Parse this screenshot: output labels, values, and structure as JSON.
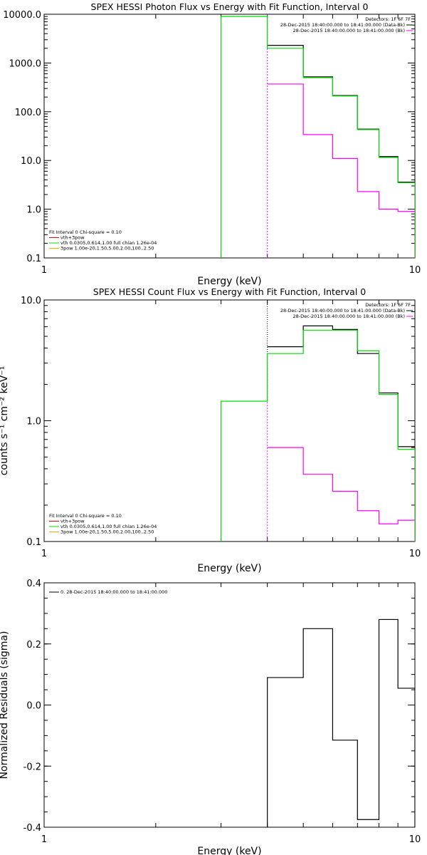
{
  "chart_data": [
    {
      "type": "line",
      "title": "SPEX HESSI Photon Flux vs Energy with Fit Function, Interval 0",
      "xlabel": "Energy (keV)",
      "ylabel": "",
      "xscale": "log",
      "yscale": "log",
      "xlim": [
        1,
        10
      ],
      "ylim": [
        0.1,
        10000
      ],
      "xticks": [
        {
          "v": 1,
          "label": "1"
        },
        {
          "v": 10,
          "label": "10"
        }
      ],
      "yticks": [
        {
          "v": 10000,
          "label": "10000.0"
        },
        {
          "v": 1000,
          "label": "1000.0"
        },
        {
          "v": 100,
          "label": "100.0"
        },
        {
          "v": 10,
          "label": "10.0"
        },
        {
          "v": 1,
          "label": "1.0"
        },
        {
          "v": 0.1,
          "label": "0.1"
        }
      ],
      "legend_position": "bottom-left",
      "legend": [
        {
          "text": "Fit Interval  0    Chi-square = 0.10",
          "color": ""
        },
        {
          "text": "vth+3pow",
          "color": "#ff0000"
        },
        {
          "text": "vth 0.0305,0.614,1.00   full chian 1.26e-04",
          "color": "#00dd00"
        },
        {
          "text": "3pow 1.00e-20,1.50,5.00,2.00,100.,2.50",
          "color": "#ffaa00"
        }
      ],
      "info_position": "top-right",
      "info": [
        {
          "text": "Detectors: 1F 6F 7F",
          "color": ""
        },
        {
          "text": "28-Dec-2015 18:40:00.000 to 18:41:00.000 (Data-Bk)",
          "color": "#000000"
        },
        {
          "text": "28-Dec-2015 18:40:00.000 to 18:41:00.000 (Bk)",
          "color": "#ff00ff"
        }
      ],
      "vline": {
        "x": 4.0,
        "color": "#ff00ff",
        "style": "dashed"
      },
      "series": [
        {
          "name": "28-Dec-2015 18:40:00.000 to 18:41:00.000 (Data-Bk)",
          "color": "#000000",
          "edges": [
            4.0,
            5.0,
            6.0,
            7.0,
            8.0,
            9.0,
            10.0
          ],
          "values": [
            2300,
            520,
            215,
            44,
            12,
            3.6
          ]
        },
        {
          "name": "28-Dec-2015 18:40:00.000 to 18:41:00.000 (Bk)",
          "color": "#ff00ff",
          "edges": [
            4.0,
            5.0,
            6.0,
            7.0,
            8.0,
            9.0,
            10.0
          ],
          "values": [
            370,
            34,
            11,
            2.3,
            1.0,
            0.9
          ]
        },
        {
          "name": "vth+3pow",
          "color": "#00dd00",
          "edges": [
            3.0,
            4.0,
            5.0,
            6.0,
            7.0,
            8.0,
            9.0,
            10.0
          ],
          "values": [
            9000,
            2000,
            500,
            210,
            43,
            11.5,
            3.5
          ],
          "floor": 0.1
        }
      ]
    },
    {
      "type": "line",
      "title": "SPEX HESSI Count Flux vs Energy with Fit Function, Interval 0",
      "xlabel": "Energy (keV)",
      "ylabel": "counts s⁻¹ cm⁻² keV⁻¹",
      "xscale": "log",
      "yscale": "log",
      "xlim": [
        1,
        10
      ],
      "ylim": [
        0.1,
        10
      ],
      "xticks": [
        {
          "v": 1,
          "label": "1"
        },
        {
          "v": 10,
          "label": "10"
        }
      ],
      "yticks": [
        {
          "v": 10,
          "label": "10.0"
        },
        {
          "v": 1,
          "label": "1.0"
        },
        {
          "v": 0.1,
          "label": "0.1"
        }
      ],
      "legend_position": "bottom-left",
      "legend": [
        {
          "text": "Fit Interval  0    Chi-square = 0.10",
          "color": ""
        },
        {
          "text": "vth+3pow",
          "color": "#ff0000"
        },
        {
          "text": "vth 0.0305,0.614,1.00   full chian 1.26e-04",
          "color": "#00dd00"
        },
        {
          "text": "3pow 1.00e-20,1.50,5.00,2.00,100.,2.50",
          "color": "#ffaa00"
        }
      ],
      "info_position": "top-right",
      "info": [
        {
          "text": "Detectors: 1F 6F 7F",
          "color": ""
        },
        {
          "text": "28-Dec-2015 18:40:00.000 to 18:41:00.000 (Data-Bk)",
          "color": "#000000"
        },
        {
          "text": "28-Dec-2015 18:40:00.000 to 18:41:00.000 (Bk)",
          "color": "#ff00ff"
        }
      ],
      "vline": {
        "x": 4.0,
        "color": "#ff00ff",
        "style": "dashed",
        "upper_color": "#000000",
        "upper_from": 3.6
      },
      "series": [
        {
          "name": "28-Dec-2015 18:40:00.000 to 18:41:00.000 (Data-Bk)",
          "color": "#000000",
          "edges": [
            4.0,
            5.0,
            6.0,
            7.0,
            8.0,
            9.0,
            10.0
          ],
          "values": [
            4.1,
            6.1,
            5.7,
            3.6,
            1.7,
            0.61
          ]
        },
        {
          "name": "28-Dec-2015 18:40:00.000 to 18:41:00.000 (Bk)",
          "color": "#ff00ff",
          "edges": [
            4.0,
            5.0,
            6.0,
            7.0,
            8.0,
            9.0,
            10.0
          ],
          "values": [
            0.6,
            0.36,
            0.26,
            0.18,
            0.14,
            0.15
          ]
        },
        {
          "name": "vth+3pow",
          "color": "#00dd00",
          "edges": [
            3.0,
            4.0,
            5.0,
            6.0,
            7.0,
            8.0,
            9.0,
            10.0
          ],
          "values": [
            1.45,
            3.6,
            5.6,
            5.6,
            3.8,
            1.65,
            0.58
          ],
          "floor": 0.1
        }
      ]
    },
    {
      "type": "line",
      "title": "",
      "xlabel": "Energy (keV)",
      "ylabel": "Normalized Residuals (sigma)",
      "xscale": "log",
      "yscale": "linear",
      "xlim": [
        1,
        10
      ],
      "ylim": [
        -0.4,
        0.4
      ],
      "xticks": [
        {
          "v": 1,
          "label": "1"
        },
        {
          "v": 10,
          "label": "10"
        }
      ],
      "yticks": [
        {
          "v": 0.4,
          "label": "0.4"
        },
        {
          "v": 0.2,
          "label": "0.2"
        },
        {
          "v": 0.0,
          "label": "0.0"
        },
        {
          "v": -0.2,
          "label": "-0.2"
        },
        {
          "v": -0.4,
          "label": "-0.4"
        }
      ],
      "legend_position": "top-left",
      "legend": [
        {
          "text": "0. 28-Dec-2015 18:40:00.000 to 18:41:00.000",
          "color": "#000000"
        }
      ],
      "info": [],
      "series": [
        {
          "name": "0. 28-Dec-2015 18:40:00.000 to 18:41:00.000",
          "color": "#000000",
          "edges": [
            4.0,
            5.0,
            6.0,
            7.0,
            8.0,
            9.0,
            10.0
          ],
          "values": [
            0.09,
            0.25,
            -0.115,
            -0.375,
            0.28,
            0.055
          ],
          "floor": -0.4
        }
      ]
    }
  ]
}
